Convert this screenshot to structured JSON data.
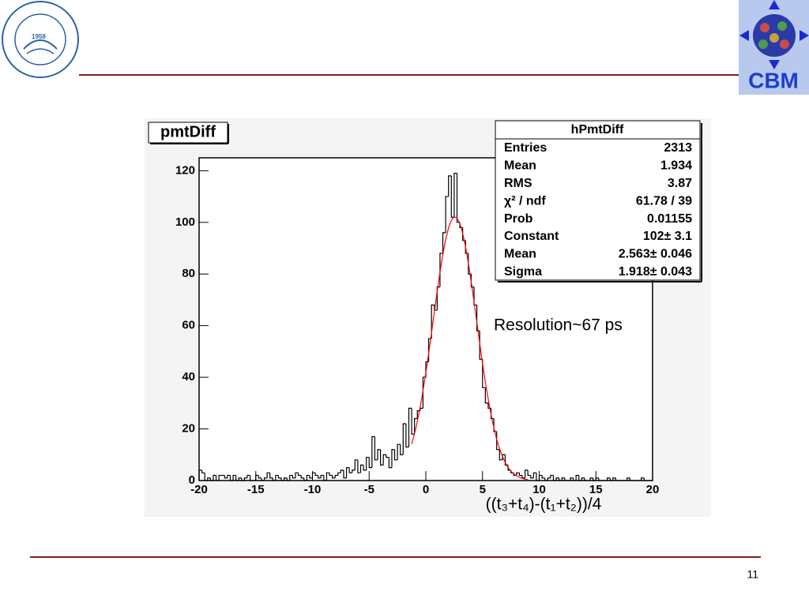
{
  "slide": {
    "page_number": "11",
    "logo_year": "1958",
    "logo_text": "CBM"
  },
  "chart_data": {
    "type": "histogram",
    "title": "pmtDiff",
    "x_label": "((t₃+t₄)-(t₁+t₂))/4",
    "annotation": "Resolution~67 ps",
    "color": "#000000",
    "fit_color": "#ff0000",
    "xlim": [
      -20,
      20
    ],
    "ylim": [
      0,
      125
    ],
    "xticks": [
      -20,
      -15,
      -10,
      -5,
      0,
      5,
      10,
      15,
      20
    ],
    "yticks": [
      0,
      20,
      40,
      60,
      80,
      100,
      120
    ],
    "bins": [
      -20,
      -19.75,
      -19.5,
      -19.25,
      -19,
      -18.75,
      -18.5,
      -18.25,
      -18,
      -17.75,
      -17.5,
      -17.25,
      -17,
      -16.75,
      -16.5,
      -16.25,
      -16,
      -15.75,
      -15.5,
      -15.25,
      -15,
      -14.75,
      -14.5,
      -14.25,
      -14,
      -13.75,
      -13.5,
      -13.25,
      -13,
      -12.75,
      -12.5,
      -12.25,
      -12,
      -11.75,
      -11.5,
      -11.25,
      -11,
      -10.75,
      -10.5,
      -10.25,
      -10,
      -9.75,
      -9.5,
      -9.25,
      -9,
      -8.75,
      -8.5,
      -8.25,
      -8,
      -7.75,
      -7.5,
      -7.25,
      -7,
      -6.75,
      -6.5,
      -6.25,
      -6,
      -5.75,
      -5.5,
      -5.25,
      -5,
      -4.75,
      -4.5,
      -4.25,
      -4,
      -3.75,
      -3.5,
      -3.25,
      -3,
      -2.75,
      -2.5,
      -2.25,
      -2,
      -1.75,
      -1.5,
      -1.25,
      -1,
      -0.75,
      -0.5,
      -0.25,
      0,
      0.25,
      0.5,
      0.75,
      1,
      1.25,
      1.5,
      1.75,
      2,
      2.25,
      2.5,
      2.75,
      3,
      3.25,
      3.5,
      3.75,
      4,
      4.25,
      4.5,
      4.75,
      5,
      5.25,
      5.5,
      5.75,
      6,
      6.25,
      6.5,
      6.75,
      7,
      7.25,
      7.5,
      7.75,
      8,
      8.25,
      8.5,
      8.75,
      9,
      9.25,
      9.5,
      9.75,
      10,
      10.25,
      10.5,
      10.75,
      11,
      11.25,
      11.5,
      11.75,
      12,
      12.25,
      12.5,
      12.75,
      13,
      13.25,
      13.5,
      13.75,
      14,
      14.25,
      14.5,
      14.75,
      15,
      15.25,
      15.5,
      15.75,
      16,
      16.25,
      16.5,
      16.75,
      17,
      17.25,
      17.5,
      17.75,
      18,
      18.25,
      18.5,
      18.75,
      19,
      19.25,
      19.5,
      19.75,
      20
    ],
    "values": [
      4,
      3,
      0,
      1,
      0,
      2,
      0,
      2,
      2,
      1,
      2,
      0,
      2,
      0,
      1,
      0,
      1,
      2,
      0,
      0,
      2,
      1,
      0,
      1,
      3,
      1,
      0,
      2,
      1,
      0,
      1,
      0,
      2,
      1,
      3,
      2,
      1,
      0,
      2,
      1,
      3,
      2,
      1,
      2,
      0,
      3,
      2,
      1,
      2,
      3,
      4,
      1,
      5,
      3,
      4,
      8,
      3,
      6,
      4,
      9,
      5,
      17,
      8,
      12,
      6,
      10,
      9,
      5,
      12,
      8,
      14,
      10,
      22,
      13,
      28,
      18,
      24,
      27,
      28,
      40,
      46,
      55,
      68,
      66,
      75,
      88,
      96,
      110,
      118,
      102,
      119,
      100,
      98,
      93,
      88,
      80,
      75,
      68,
      58,
      47,
      36,
      30,
      28,
      24,
      19,
      12,
      8,
      10,
      6,
      4,
      3,
      2,
      3,
      2,
      1,
      4,
      2,
      1,
      3,
      0,
      2,
      1,
      0,
      1,
      2,
      0,
      1,
      0,
      1,
      0,
      0,
      1,
      0,
      2,
      0,
      1,
      0,
      0,
      1,
      0,
      1,
      0,
      0,
      0,
      1,
      0,
      1,
      0,
      0,
      0,
      0,
      1,
      0,
      0,
      0,
      0,
      1,
      0,
      0,
      0
    ],
    "fit": {
      "constant": 102,
      "mean": 2.563,
      "sigma": 1.918,
      "range": [
        -1.25,
        9
      ]
    },
    "stats": {
      "title": "hPmtDiff",
      "rows": [
        {
          "label": "Entries",
          "value": "2313"
        },
        {
          "label": "Mean",
          "value": "1.934"
        },
        {
          "label": "RMS",
          "value": "3.87"
        },
        {
          "label": "χ² / ndf",
          "value": "61.78 / 39"
        },
        {
          "label": "Prob",
          "value": "0.01155"
        },
        {
          "label": "Constant",
          "value": "102± 3.1"
        },
        {
          "label": "Mean",
          "value": "2.563± 0.046"
        },
        {
          "label": "Sigma",
          "value": "1.918± 0.043"
        }
      ]
    }
  }
}
